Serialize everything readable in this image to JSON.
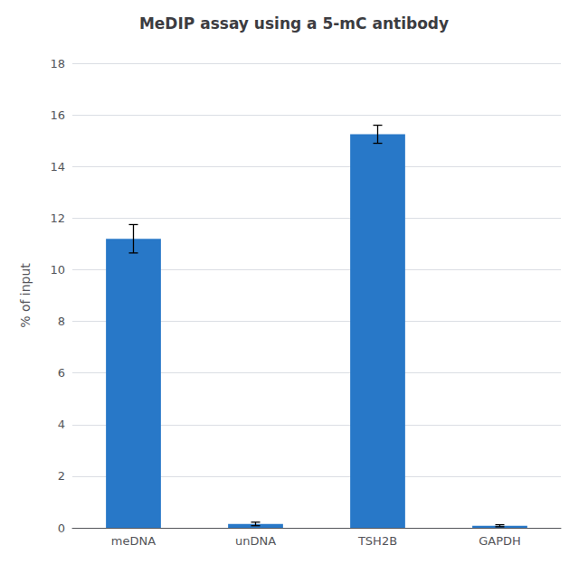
{
  "chart_data": {
    "type": "bar",
    "title": "MeDIP assay using a 5-mC antibody",
    "categories": [
      "meDNA",
      "unDNA",
      "TSH2B",
      "GAPDH"
    ],
    "values": [
      11.2,
      0.15,
      15.25,
      0.08
    ],
    "errors": [
      0.55,
      0.07,
      0.35,
      0.04
    ],
    "color": "#2878C8",
    "ylabel": "% of input",
    "ylim": [
      0,
      18
    ],
    "yticks": [
      0,
      2,
      4,
      6,
      8,
      10,
      12,
      14,
      16,
      18
    ],
    "grid": true
  }
}
